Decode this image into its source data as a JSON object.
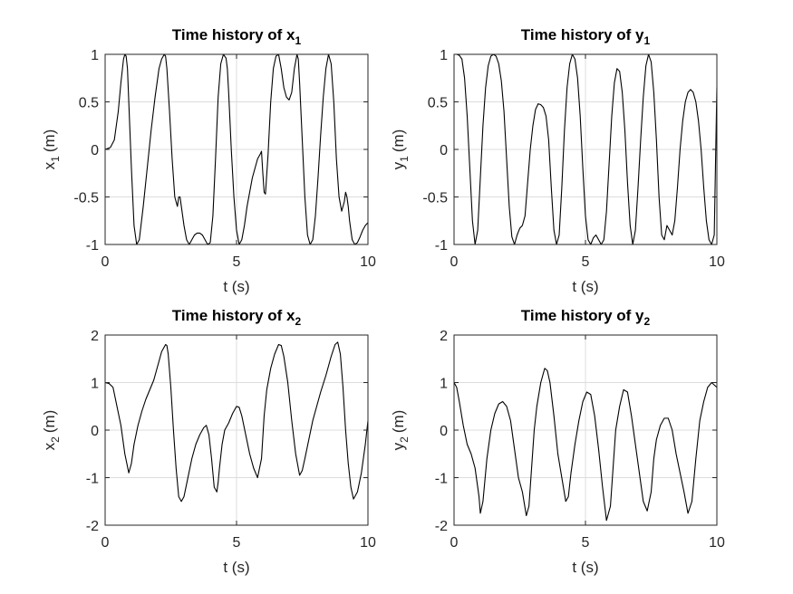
{
  "chart_data": [
    {
      "type": "line",
      "title": "Time history of x",
      "title_subscript": "1",
      "xlabel": "t (s)",
      "ylabel": "x",
      "ylabel_subscript": "1",
      "ylabel_unit": "(m)",
      "xlim": [
        0,
        10
      ],
      "ylim": [
        -1,
        1
      ],
      "xticks": [
        "0",
        "5",
        "10"
      ],
      "yticks": [
        "-1",
        "-0.5",
        "0",
        "0.5",
        "1"
      ],
      "grid": true,
      "line_color": "#000000",
      "series": [
        {
          "x": [
            0,
            0.2,
            0.35,
            0.5,
            0.6,
            0.7,
            0.75,
            0.8,
            0.85,
            0.9,
            1.0,
            1.1,
            1.2,
            1.3,
            1.45,
            1.6,
            1.75,
            1.9,
            2.05,
            2.15,
            2.25,
            2.3,
            2.35,
            2.45,
            2.55,
            2.65,
            2.75,
            2.8,
            2.85,
            2.9,
            3.0,
            3.1,
            3.2,
            3.3,
            3.4,
            3.5,
            3.6,
            3.7,
            3.8,
            3.9,
            4.0,
            4.1,
            4.2,
            4.3,
            4.4,
            4.5,
            4.6,
            4.65,
            4.7,
            4.8,
            4.9,
            5.0,
            5.1,
            5.2,
            5.3,
            5.4,
            5.5,
            5.6,
            5.7,
            5.8,
            5.9,
            5.95,
            6.0,
            6.05,
            6.1,
            6.2,
            6.3,
            6.4,
            6.5,
            6.6,
            6.7,
            6.8,
            6.9,
            7.0,
            7.1,
            7.2,
            7.3,
            7.35,
            7.4,
            7.5,
            7.6,
            7.7,
            7.8,
            7.9,
            8.0,
            8.1,
            8.2,
            8.3,
            8.4,
            8.5,
            8.6,
            8.7,
            8.75,
            8.8,
            8.9,
            9.0,
            9.1,
            9.15,
            9.2,
            9.25,
            9.3,
            9.4,
            9.5,
            9.6,
            9.7,
            9.8,
            9.9,
            10.0
          ],
          "y": [
            0,
            0.02,
            0.1,
            0.4,
            0.7,
            0.95,
            1.0,
            0.98,
            0.85,
            0.5,
            -0.2,
            -0.8,
            -1.0,
            -0.95,
            -0.6,
            -0.2,
            0.2,
            0.55,
            0.85,
            0.95,
            1.0,
            0.98,
            0.85,
            0.4,
            -0.1,
            -0.5,
            -0.6,
            -0.5,
            -0.5,
            -0.6,
            -0.8,
            -0.95,
            -1.0,
            -0.95,
            -0.9,
            -0.88,
            -0.88,
            -0.9,
            -0.95,
            -1.0,
            -0.98,
            -0.7,
            -0.1,
            0.55,
            0.9,
            1.0,
            0.96,
            0.85,
            0.6,
            0.0,
            -0.5,
            -0.85,
            -1.0,
            -0.95,
            -0.8,
            -0.6,
            -0.45,
            -0.3,
            -0.2,
            -0.1,
            -0.05,
            -0.02,
            -0.25,
            -0.45,
            -0.47,
            -0.05,
            0.5,
            0.85,
            0.98,
            1.0,
            0.85,
            0.65,
            0.55,
            0.52,
            0.6,
            0.85,
            1.0,
            0.95,
            0.7,
            0.1,
            -0.5,
            -0.9,
            -1.0,
            -0.95,
            -0.7,
            -0.3,
            0.15,
            0.55,
            0.85,
            1.0,
            0.9,
            0.5,
            0.2,
            -0.1,
            -0.5,
            -0.65,
            -0.55,
            -0.45,
            -0.5,
            -0.6,
            -0.75,
            -0.95,
            -1.0,
            -0.98,
            -0.92,
            -0.85,
            -0.8,
            -0.77
          ]
        }
      ]
    },
    {
      "type": "line",
      "title": "Time history of y",
      "title_subscript": "1",
      "xlabel": "t (s)",
      "ylabel": "y",
      "ylabel_subscript": "1",
      "ylabel_unit": "(m)",
      "xlim": [
        0,
        10
      ],
      "ylim": [
        -1,
        1
      ],
      "xticks": [
        "0",
        "5",
        "10"
      ],
      "yticks": [
        "-1",
        "-0.5",
        "0",
        "0.5",
        "1"
      ],
      "grid": true,
      "line_color": "#000000",
      "series": [
        {
          "x": [
            0,
            0.1,
            0.2,
            0.3,
            0.4,
            0.5,
            0.6,
            0.7,
            0.8,
            0.9,
            1.0,
            1.1,
            1.2,
            1.3,
            1.4,
            1.5,
            1.6,
            1.7,
            1.8,
            1.9,
            2.0,
            2.1,
            2.2,
            2.3,
            2.4,
            2.5,
            2.6,
            2.7,
            2.8,
            2.9,
            3.0,
            3.1,
            3.2,
            3.3,
            3.4,
            3.5,
            3.6,
            3.7,
            3.8,
            3.9,
            4.0,
            4.1,
            4.2,
            4.3,
            4.4,
            4.5,
            4.6,
            4.7,
            4.8,
            4.9,
            5.0,
            5.1,
            5.2,
            5.3,
            5.4,
            5.5,
            5.6,
            5.7,
            5.8,
            5.9,
            6.0,
            6.1,
            6.2,
            6.3,
            6.4,
            6.5,
            6.6,
            6.7,
            6.8,
            6.9,
            7.0,
            7.1,
            7.2,
            7.3,
            7.4,
            7.5,
            7.6,
            7.7,
            7.8,
            7.9,
            8.0,
            8.1,
            8.2,
            8.3,
            8.4,
            8.5,
            8.6,
            8.7,
            8.8,
            8.9,
            9.0,
            9.1,
            9.2,
            9.3,
            9.4,
            9.5,
            9.6,
            9.7,
            9.8,
            9.9,
            10.0
          ],
          "y": [
            1.0,
            1.0,
            0.99,
            0.95,
            0.75,
            0.35,
            -0.2,
            -0.75,
            -1.0,
            -0.85,
            -0.3,
            0.25,
            0.65,
            0.88,
            0.98,
            1.0,
            0.98,
            0.9,
            0.72,
            0.4,
            -0.1,
            -0.6,
            -0.92,
            -1.0,
            -0.9,
            -0.83,
            -0.8,
            -0.7,
            -0.35,
            0.0,
            0.25,
            0.42,
            0.48,
            0.47,
            0.44,
            0.35,
            0.1,
            -0.4,
            -0.85,
            -1.0,
            -0.9,
            -0.4,
            0.2,
            0.65,
            0.9,
            1.0,
            0.95,
            0.75,
            0.35,
            -0.2,
            -0.7,
            -0.95,
            -1.0,
            -0.93,
            -0.9,
            -0.95,
            -1.0,
            -0.95,
            -0.65,
            -0.15,
            0.35,
            0.7,
            0.85,
            0.82,
            0.6,
            0.2,
            -0.35,
            -0.8,
            -1.0,
            -0.85,
            -0.4,
            0.1,
            0.55,
            0.88,
            1.0,
            0.92,
            0.6,
            0.1,
            -0.5,
            -0.9,
            -0.95,
            -0.8,
            -0.85,
            -0.9,
            -0.75,
            -0.4,
            0.0,
            0.3,
            0.5,
            0.6,
            0.63,
            0.6,
            0.5,
            0.3,
            0.0,
            -0.4,
            -0.75,
            -0.95,
            -1.0,
            -0.9,
            0.65
          ]
        }
      ]
    },
    {
      "type": "line",
      "title": "Time history of x",
      "title_subscript": "2",
      "xlabel": "t (s)",
      "ylabel": "x",
      "ylabel_subscript": "2",
      "ylabel_unit": "(m)",
      "xlim": [
        0,
        10
      ],
      "ylim": [
        -2,
        2
      ],
      "xticks": [
        "0",
        "5",
        "10"
      ],
      "yticks": [
        "-2",
        "-1",
        "0",
        "1",
        "2"
      ],
      "grid": true,
      "line_color": "#000000",
      "series": [
        {
          "x": [
            0,
            0.15,
            0.3,
            0.45,
            0.6,
            0.75,
            0.9,
            1.0,
            1.1,
            1.25,
            1.4,
            1.55,
            1.7,
            1.85,
            2.0,
            2.15,
            2.3,
            2.35,
            2.4,
            2.5,
            2.6,
            2.7,
            2.8,
            2.9,
            3.0,
            3.15,
            3.3,
            3.45,
            3.6,
            3.75,
            3.85,
            3.95,
            4.05,
            4.15,
            4.25,
            4.3,
            4.35,
            4.45,
            4.55,
            4.7,
            4.85,
            5.0,
            5.1,
            5.2,
            5.35,
            5.5,
            5.65,
            5.8,
            5.95,
            6.05,
            6.15,
            6.3,
            6.45,
            6.6,
            6.7,
            6.8,
            6.95,
            7.1,
            7.25,
            7.4,
            7.5,
            7.6,
            7.75,
            7.9,
            8.05,
            8.2,
            8.4,
            8.6,
            8.75,
            8.85,
            8.95,
            9.05,
            9.15,
            9.25,
            9.35,
            9.45,
            9.6,
            9.75,
            9.9,
            10.0
          ],
          "y": [
            1.0,
            0.98,
            0.9,
            0.5,
            0.1,
            -0.5,
            -0.9,
            -0.7,
            -0.3,
            0.1,
            0.4,
            0.65,
            0.85,
            1.05,
            1.35,
            1.65,
            1.8,
            1.78,
            1.6,
            0.9,
            0.0,
            -0.8,
            -1.4,
            -1.5,
            -1.4,
            -1.0,
            -0.6,
            -0.3,
            -0.1,
            0.05,
            0.1,
            -0.1,
            -0.6,
            -1.2,
            -1.3,
            -1.1,
            -0.8,
            -0.3,
            0.0,
            0.15,
            0.35,
            0.5,
            0.48,
            0.3,
            -0.1,
            -0.5,
            -0.8,
            -1.0,
            -0.6,
            0.3,
            0.85,
            1.3,
            1.6,
            1.8,
            1.78,
            1.55,
            1.0,
            0.2,
            -0.5,
            -0.95,
            -0.85,
            -0.6,
            -0.2,
            0.2,
            0.5,
            0.8,
            1.15,
            1.55,
            1.8,
            1.85,
            1.6,
            0.9,
            0.0,
            -0.7,
            -1.2,
            -1.45,
            -1.3,
            -0.9,
            -0.3,
            0.2
          ]
        }
      ]
    },
    {
      "type": "line",
      "title": "Time history of y",
      "title_subscript": "2",
      "xlabel": "t (s)",
      "ylabel": "y",
      "ylabel_subscript": "2",
      "ylabel_unit": "(m)",
      "xlim": [
        0,
        10
      ],
      "ylim": [
        -2,
        2
      ],
      "xticks": [
        "0",
        "5",
        "10"
      ],
      "yticks": [
        "-2",
        "-1",
        "0",
        "1",
        "2"
      ],
      "grid": true,
      "line_color": "#000000",
      "series": [
        {
          "x": [
            0,
            0.1,
            0.2,
            0.35,
            0.5,
            0.65,
            0.8,
            0.95,
            1.0,
            1.1,
            1.25,
            1.4,
            1.55,
            1.7,
            1.85,
            2.0,
            2.15,
            2.3,
            2.45,
            2.6,
            2.75,
            2.85,
            2.95,
            3.05,
            3.15,
            3.3,
            3.45,
            3.55,
            3.65,
            3.8,
            3.95,
            4.1,
            4.25,
            4.35,
            4.45,
            4.6,
            4.75,
            4.9,
            5.05,
            5.2,
            5.35,
            5.5,
            5.65,
            5.8,
            5.95,
            6.05,
            6.15,
            6.3,
            6.45,
            6.6,
            6.75,
            6.9,
            7.05,
            7.2,
            7.35,
            7.5,
            7.6,
            7.7,
            7.85,
            8.0,
            8.15,
            8.3,
            8.45,
            8.6,
            8.75,
            8.9,
            9.05,
            9.2,
            9.35,
            9.5,
            9.65,
            9.8,
            9.9,
            10.0
          ],
          "y": [
            1.0,
            0.9,
            0.6,
            0.1,
            -0.3,
            -0.5,
            -0.8,
            -1.4,
            -1.75,
            -1.5,
            -0.6,
            0.0,
            0.35,
            0.55,
            0.6,
            0.5,
            0.2,
            -0.4,
            -1.0,
            -1.3,
            -1.8,
            -1.6,
            -0.8,
            0.0,
            0.5,
            1.0,
            1.3,
            1.25,
            1.0,
            0.3,
            -0.5,
            -1.0,
            -1.5,
            -1.4,
            -0.9,
            -0.3,
            0.2,
            0.6,
            0.8,
            0.75,
            0.3,
            -0.4,
            -1.2,
            -1.9,
            -1.6,
            -0.8,
            0.0,
            0.5,
            0.85,
            0.8,
            0.3,
            -0.3,
            -0.9,
            -1.5,
            -1.7,
            -1.3,
            -0.6,
            -0.2,
            0.1,
            0.25,
            0.25,
            0.0,
            -0.5,
            -0.9,
            -1.3,
            -1.75,
            -1.5,
            -0.6,
            0.2,
            0.6,
            0.9,
            1.0,
            0.95,
            0.9
          ]
        }
      ]
    }
  ]
}
